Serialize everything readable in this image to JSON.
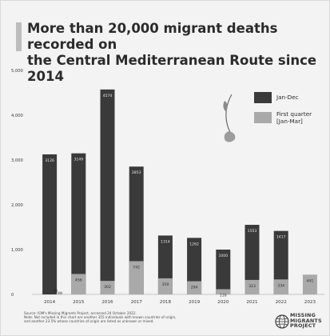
{
  "chart_data": {
    "type": "bar",
    "title": "More than 20,000 migrant deaths recorded on\nthe Central Mediterranean Route since 2014",
    "categories": [
      "2014",
      "2015",
      "2016",
      "2017",
      "2018",
      "2019",
      "2020",
      "2021",
      "2022",
      "2023"
    ],
    "series": [
      {
        "name": "Jan-Dec",
        "color": "#3a3a3a",
        "values": [
          3126,
          3149,
          4574,
          2853,
          1314,
          1262,
          1000,
          1553,
          1417,
          null
        ]
      },
      {
        "name": "First quarter\n[Jan-Mar]",
        "color": "#a9a9a9",
        "values": [
          60,
          456,
          302,
          742,
          359,
          294,
          116,
          323,
          334,
          441
        ]
      }
    ],
    "bar_labels": {
      "Jan-Dec": [
        "3126",
        "3149",
        "4574",
        "2853",
        "1314",
        "1262",
        "1000",
        "1553",
        "1417",
        ""
      ],
      "First quarter\n[Jan-Mar]": [
        "60",
        "456",
        "302",
        "742",
        "359",
        "294",
        "116",
        "323",
        "334",
        "441"
      ]
    },
    "ylim": [
      0,
      5000
    ],
    "yticks": [
      0,
      1000,
      2000,
      3000,
      4000,
      5000
    ],
    "ytick_labels": [
      "0",
      "1,000",
      "2,000",
      "3,000",
      "4,000",
      "5,000"
    ],
    "grid": false,
    "legend_position": "top-right",
    "xlabel": "",
    "ylabel": ""
  },
  "footer": {
    "source": "Source: IOM's Missing Migrants Project, accessed 24 October 2022.\nNote: Not included in this chart are another 355 individuals with known countries of origin,\nand another 23.5% whose countries of origin are listed as unknown or mixed.",
    "logo_text": "MISSING\nMIGRANTS\nPROJECT"
  },
  "colors": {
    "background": "#f3f3f3",
    "dark_bar": "#3a3a3a",
    "light_bar": "#a9a9a9",
    "text": "#2b2b2b"
  },
  "icons": {
    "decoration": "wilted-flower-icon",
    "logo": "globe-icon"
  }
}
